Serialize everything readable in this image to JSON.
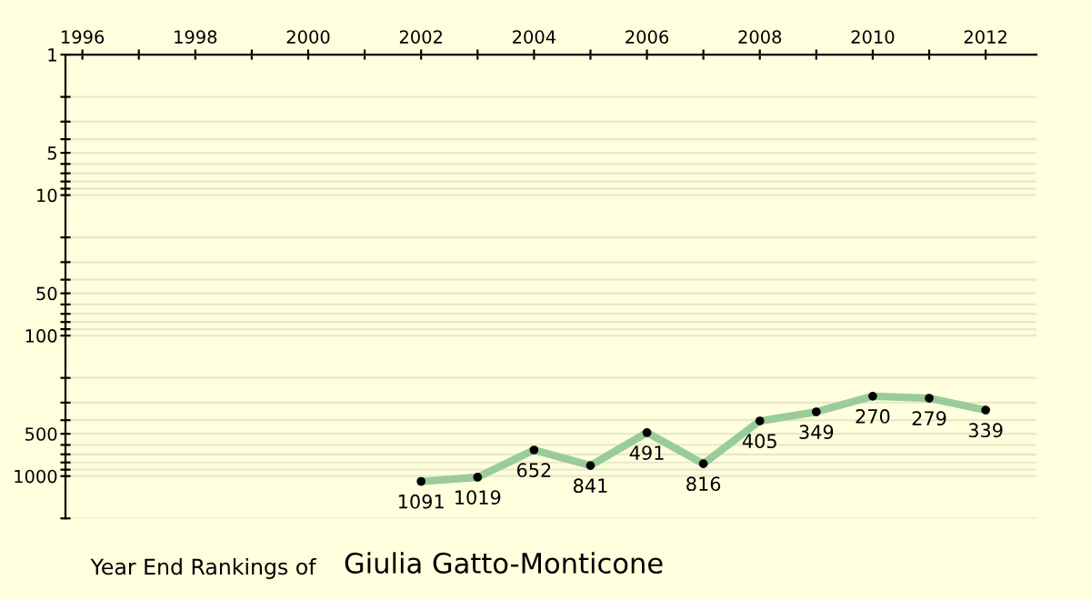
{
  "chart_data": {
    "type": "line",
    "title": "Year End Rankings of",
    "subtitle": "Giulia Gatto-Monticone",
    "x": [
      2002,
      2003,
      2004,
      2005,
      2006,
      2007,
      2008,
      2009,
      2010,
      2011,
      2012
    ],
    "series": [
      {
        "color": "#99cc99",
        "values": [
          1091,
          1019,
          652,
          841,
          491,
          816,
          405,
          349,
          270,
          279,
          339
        ]
      }
    ],
    "data_labels": true,
    "marker": "circle",
    "line_style": "solid",
    "log": true,
    "grid": "y",
    "xlim": [
      1995.7,
      2012.9
    ],
    "xticks": [
      1996,
      {
        "value": 1997,
        "label": null
      },
      1998,
      {
        "value": 1999,
        "label": null
      },
      2000,
      {
        "value": 2001,
        "label": null
      },
      2002,
      {
        "value": 2003,
        "label": null
      },
      2004,
      {
        "value": 2005,
        "label": null
      },
      2006,
      {
        "value": 2007,
        "label": null
      },
      2008,
      {
        "value": 2009,
        "label": null
      },
      2010,
      {
        "value": 2011,
        "label": null
      },
      2012
    ],
    "ylim": [
      2000,
      1
    ],
    "yticks": [
      1,
      {
        "value": 2,
        "label": null
      },
      {
        "value": 3,
        "label": null
      },
      {
        "value": 4,
        "label": null
      },
      5,
      {
        "value": 6,
        "label": null
      },
      {
        "value": 7,
        "label": null
      },
      {
        "value": 8,
        "label": null
      },
      {
        "value": 9,
        "label": null
      },
      10,
      {
        "value": 20,
        "label": null
      },
      {
        "value": 30,
        "label": null
      },
      {
        "value": 40,
        "label": null
      },
      50,
      {
        "value": 60,
        "label": null
      },
      {
        "value": 70,
        "label": null
      },
      {
        "value": 80,
        "label": null
      },
      {
        "value": 90,
        "label": null
      },
      100,
      {
        "value": 200,
        "label": null
      },
      {
        "value": 300,
        "label": null
      },
      {
        "value": 400,
        "label": null
      },
      500,
      {
        "value": 600,
        "label": null
      },
      {
        "value": 700,
        "label": null
      },
      {
        "value": 800,
        "label": null
      },
      {
        "value": 900,
        "label": null
      },
      1000,
      {
        "value": 2000,
        "label": null
      }
    ]
  }
}
